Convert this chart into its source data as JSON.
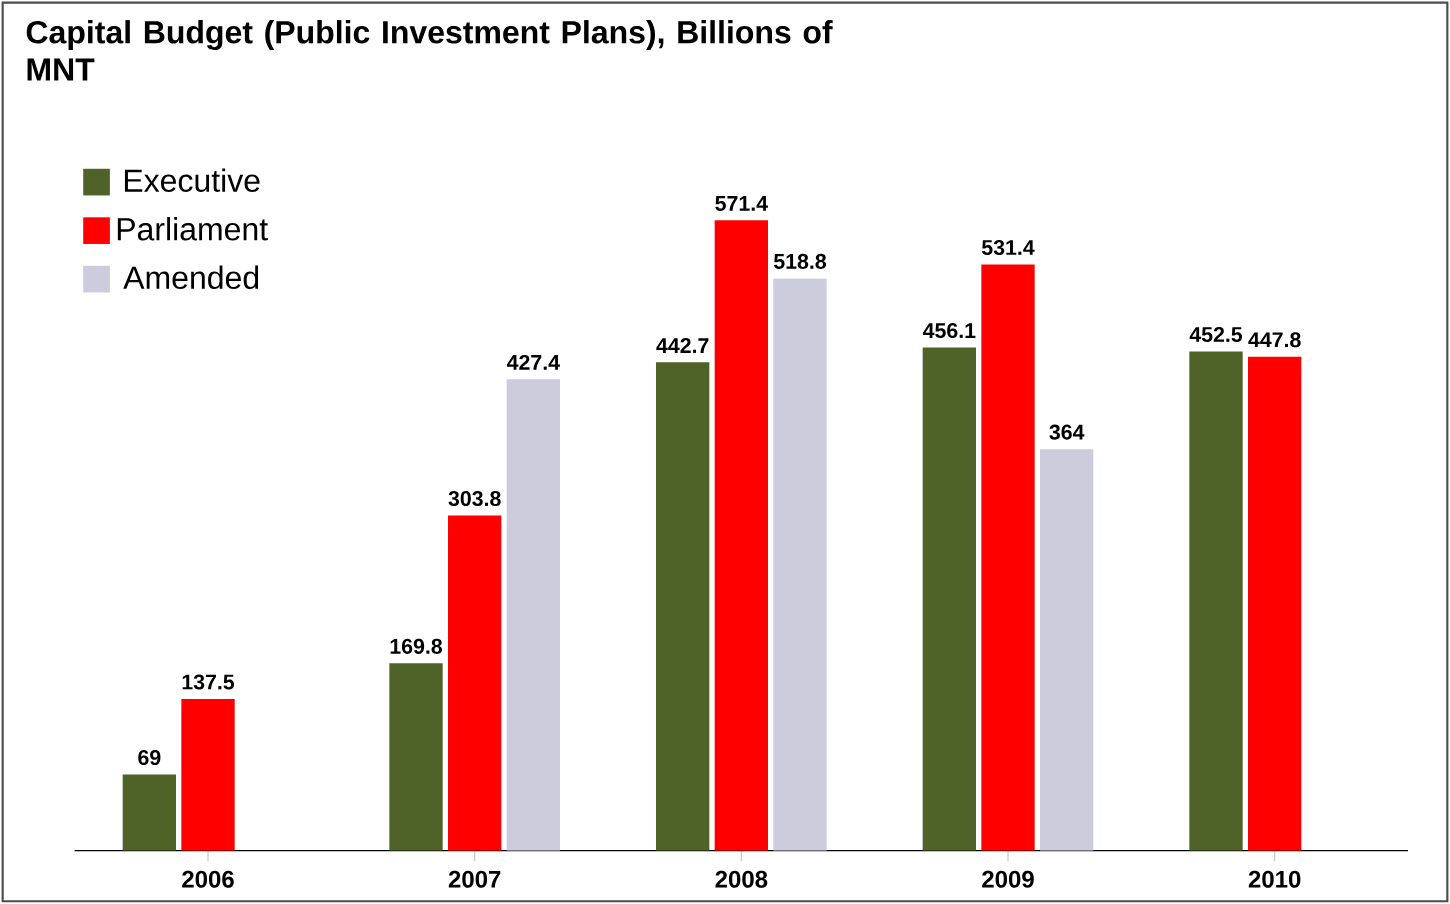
{
  "chart_data": {
    "type": "bar",
    "title": "Capital Budget (Public Investment Plans),  Billions of MNT",
    "categories": [
      "2006",
      "2007",
      "2008",
      "2009",
      "2010"
    ],
    "series": [
      {
        "name": "Executive",
        "color": "#4f6228",
        "values": [
          69,
          169.8,
          442.7,
          456.1,
          452.5
        ]
      },
      {
        "name": "Parliament",
        "color": "#ff0000",
        "values": [
          137.5,
          303.8,
          571.4,
          531.4,
          447.8
        ]
      },
      {
        "name": "Amended",
        "color": "#ccccdd",
        "values": [
          null,
          427.4,
          518.8,
          364,
          null
        ]
      }
    ],
    "data_labels": true,
    "legend": "top left"
  }
}
